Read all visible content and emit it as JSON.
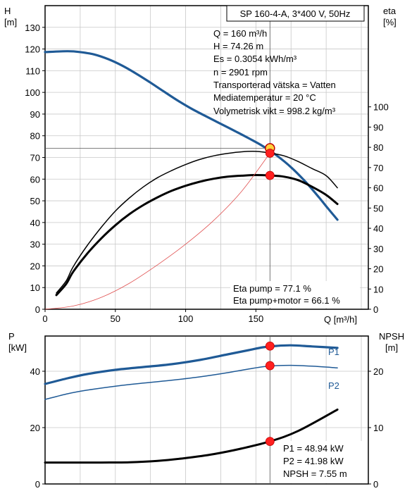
{
  "colors": {
    "head": "#1f5a96",
    "p1": "#1f5a96",
    "p2": "#1f5a96",
    "eta_pump": "#000000",
    "eta_total": "#000000",
    "npsh": "#000000",
    "system": "#e05050",
    "marker": "#ff2020",
    "marker_stroke": "#c00000",
    "duty_marker_fill": "#ffd23c",
    "text_label": "#1f5a96"
  },
  "chart_data": [
    {
      "type": "line",
      "title": "SP 160-4-A, 3*400 V, 50Hz",
      "xlabel": "Q [m³/h]",
      "ylabel_left": [
        "H",
        "[m]"
      ],
      "ylabel_right": [
        "eta",
        "[%]"
      ],
      "xlim": [
        0,
        230
      ],
      "ylim_left": [
        0,
        140
      ],
      "ylim_right": [
        0,
        150
      ],
      "x_ticks": [
        0,
        50,
        100,
        150
      ],
      "y_ticks_left": [
        0,
        10,
        20,
        30,
        40,
        50,
        60,
        70,
        80,
        90,
        100,
        110,
        120,
        130
      ],
      "y_ticks_right": [
        0,
        10,
        20,
        30,
        40,
        50,
        60,
        70,
        80,
        90,
        100
      ],
      "grid": true,
      "info_lines": [
        "Q = 160 m³/h",
        "H = 74.26 m",
        "Es = 0.3054 kWh/m³",
        "n = 2901 rpm",
        "Transporterad vätska = Vatten",
        "Mediatemperatur = 20 °C",
        "Volymetrisk vikt = 998.2 kg/m³"
      ],
      "efficiency_lines": [
        "Eta pump = 77.1 %",
        "Eta pump+motor = 66.1 %"
      ],
      "series": [
        {
          "id": "head",
          "axis": "left",
          "width": 3.2,
          "x": [
            0,
            16,
            25,
            35,
            45,
            55,
            65,
            75,
            85,
            95,
            105,
            115,
            125,
            135,
            145,
            155,
            165,
            175,
            185,
            195,
            200,
            208
          ],
          "y": [
            118.6,
            119,
            118.6,
            117.5,
            115.3,
            112.3,
            108.6,
            104.5,
            100.2,
            96,
            92.2,
            88.8,
            85.5,
            82.2,
            78.8,
            75.2,
            70.8,
            65.5,
            59,
            51.5,
            47.5,
            41.3
          ]
        },
        {
          "id": "eta_pump",
          "axis": "right",
          "width": 1.5,
          "x": [
            8,
            15,
            20,
            30,
            40,
            50,
            60,
            70,
            80,
            90,
            100,
            110,
            120,
            130,
            140,
            150,
            160,
            170,
            180,
            190,
            200,
            208
          ],
          "y": [
            8,
            14,
            21,
            31.5,
            40.5,
            48.5,
            55,
            60.5,
            65,
            68.5,
            71.5,
            74,
            75.8,
            77,
            77.8,
            78,
            77.2,
            75.8,
            73,
            69.5,
            66,
            60
          ]
        },
        {
          "id": "eta_total",
          "axis": "right",
          "width": 3,
          "x": [
            8,
            15,
            20,
            30,
            40,
            50,
            60,
            70,
            80,
            90,
            100,
            110,
            120,
            130,
            140,
            150,
            160,
            170,
            180,
            190,
            200,
            208
          ],
          "y": [
            7,
            12.5,
            18.5,
            27.5,
            35,
            41.5,
            47,
            51.5,
            55.3,
            58.5,
            61,
            63,
            64.5,
            65.5,
            66,
            66.3,
            66.1,
            65.5,
            63.8,
            60.5,
            56.5,
            52
          ]
        },
        {
          "id": "system",
          "axis": "left",
          "width": 0.8,
          "x": [
            0,
            20,
            40,
            60,
            80,
            100,
            120,
            140,
            160
          ],
          "y": [
            0,
            1.5,
            5.5,
            12,
            20.5,
            30,
            41,
            54.5,
            72
          ]
        }
      ],
      "markers": [
        {
          "axis": "left",
          "x": 160,
          "y": 74.26,
          "style": "duty"
        },
        {
          "axis": "right",
          "x": 160,
          "y": 77.1,
          "style": "point"
        },
        {
          "axis": "right",
          "x": 160,
          "y": 66.1,
          "style": "point"
        }
      ],
      "guides": {
        "x": 160,
        "y_left": 74.26
      }
    },
    {
      "type": "line",
      "xlim": [
        0,
        230
      ],
      "ylabel_left": [
        "P",
        "[kW]"
      ],
      "ylabel_right": [
        "NPSH",
        "[m]"
      ],
      "ylim_left": [
        0,
        52.5
      ],
      "ylim_right": [
        0,
        26.25
      ],
      "y_ticks_left": [
        0,
        20,
        40
      ],
      "y_ticks_right": [
        0,
        10,
        20
      ],
      "grid": true,
      "readouts": [
        "P1 = 48.94 kW",
        "P2 = 41.98 kW",
        "NPSH = 7.55 m"
      ],
      "series": [
        {
          "id": "p1",
          "name": "P1",
          "axis": "left",
          "width": 3.2,
          "x": [
            0,
            16,
            30,
            50,
            70,
            90,
            110,
            130,
            145,
            155,
            165,
            175,
            190,
            208
          ],
          "y": [
            35.5,
            37.5,
            39,
            40.5,
            41.5,
            42.5,
            44,
            46,
            47.5,
            48.5,
            49,
            49.2,
            48.8,
            48.3
          ]
        },
        {
          "id": "p2",
          "name": "P2",
          "axis": "left",
          "width": 1.5,
          "x": [
            0,
            16,
            30,
            50,
            70,
            90,
            110,
            130,
            145,
            155,
            165,
            175,
            190,
            208
          ],
          "y": [
            30,
            32,
            33.3,
            34.7,
            35.8,
            36.8,
            38,
            39.5,
            40.8,
            41.6,
            42,
            42.1,
            41.8,
            41.2
          ]
        },
        {
          "id": "npsh",
          "axis": "right",
          "width": 3,
          "x": [
            0,
            16,
            40,
            60,
            80,
            100,
            120,
            140,
            160,
            180,
            208
          ],
          "y": [
            3.8,
            3.8,
            3.8,
            3.85,
            4.1,
            4.6,
            5.3,
            6.3,
            7.55,
            9.4,
            13.2
          ]
        }
      ],
      "markers": [
        {
          "axis": "left",
          "x": 160,
          "y": 48.94,
          "style": "point"
        },
        {
          "axis": "left",
          "x": 160,
          "y": 41.98,
          "style": "point"
        },
        {
          "axis": "right",
          "x": 160,
          "y": 7.55,
          "style": "point"
        }
      ],
      "guides": {
        "x": 160
      }
    }
  ]
}
